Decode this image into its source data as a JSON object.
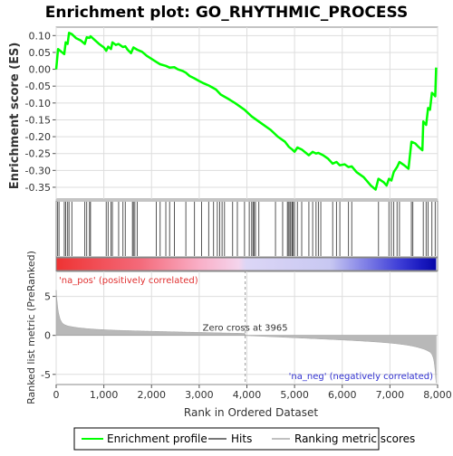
{
  "chart_data": {
    "type": "line",
    "title": "Enrichment plot: GO_RHYTHMIC_PROCESS",
    "panels": {
      "enrichment": {
        "ylabel": "Enrichment score (ES)",
        "ylim": [
          -0.385,
          0.125
        ],
        "yticks": [
          0.1,
          0.05,
          0.0,
          -0.05,
          -0.1,
          -0.15,
          -0.2,
          -0.25,
          -0.3,
          -0.35
        ],
        "ytick_labels": [
          "0.10",
          "0.05",
          "0.00",
          "-0.05",
          "-0.10",
          "-0.15",
          "-0.20",
          "-0.25",
          "-0.30",
          "-0.35"
        ],
        "series_color": "#00ff00",
        "profile": [
          [
            0,
            0.0
          ],
          [
            40,
            0.06
          ],
          [
            170,
            0.045
          ],
          [
            200,
            0.08
          ],
          [
            240,
            0.075
          ],
          [
            270,
            0.108
          ],
          [
            330,
            0.104
          ],
          [
            420,
            0.092
          ],
          [
            520,
            0.085
          ],
          [
            600,
            0.075
          ],
          [
            640,
            0.095
          ],
          [
            700,
            0.093
          ],
          [
            720,
            0.098
          ],
          [
            900,
            0.075
          ],
          [
            1000,
            0.065
          ],
          [
            1050,
            0.055
          ],
          [
            1090,
            0.067
          ],
          [
            1150,
            0.06
          ],
          [
            1180,
            0.08
          ],
          [
            1250,
            0.072
          ],
          [
            1310,
            0.075
          ],
          [
            1400,
            0.066
          ],
          [
            1450,
            0.068
          ],
          [
            1500,
            0.058
          ],
          [
            1570,
            0.048
          ],
          [
            1620,
            0.065
          ],
          [
            1700,
            0.058
          ],
          [
            1800,
            0.052
          ],
          [
            1900,
            0.04
          ],
          [
            2100,
            0.022
          ],
          [
            2180,
            0.015
          ],
          [
            2300,
            0.01
          ],
          [
            2380,
            0.005
          ],
          [
            2480,
            0.006
          ],
          [
            2550,
            0.0
          ],
          [
            2650,
            -0.005
          ],
          [
            2720,
            -0.01
          ],
          [
            2800,
            -0.02
          ],
          [
            2900,
            -0.027
          ],
          [
            3000,
            -0.035
          ],
          [
            3100,
            -0.042
          ],
          [
            3200,
            -0.048
          ],
          [
            3350,
            -0.06
          ],
          [
            3450,
            -0.075
          ],
          [
            3600,
            -0.087
          ],
          [
            3750,
            -0.1
          ],
          [
            3950,
            -0.12
          ],
          [
            4100,
            -0.14
          ],
          [
            4300,
            -0.16
          ],
          [
            4500,
            -0.18
          ],
          [
            4650,
            -0.2
          ],
          [
            4800,
            -0.215
          ],
          [
            4880,
            -0.23
          ],
          [
            4950,
            -0.238
          ],
          [
            5000,
            -0.245
          ],
          [
            5060,
            -0.232
          ],
          [
            5150,
            -0.238
          ],
          [
            5300,
            -0.255
          ],
          [
            5380,
            -0.245
          ],
          [
            5450,
            -0.25
          ],
          [
            5500,
            -0.248
          ],
          [
            5600,
            -0.255
          ],
          [
            5700,
            -0.265
          ],
          [
            5800,
            -0.28
          ],
          [
            5880,
            -0.275
          ],
          [
            5950,
            -0.285
          ],
          [
            6050,
            -0.282
          ],
          [
            6130,
            -0.29
          ],
          [
            6200,
            -0.288
          ],
          [
            6300,
            -0.305
          ],
          [
            6450,
            -0.32
          ],
          [
            6600,
            -0.345
          ],
          [
            6700,
            -0.357
          ],
          [
            6760,
            -0.325
          ],
          [
            6870,
            -0.335
          ],
          [
            6930,
            -0.345
          ],
          [
            6980,
            -0.325
          ],
          [
            7030,
            -0.33
          ],
          [
            7080,
            -0.305
          ],
          [
            7150,
            -0.29
          ],
          [
            7200,
            -0.275
          ],
          [
            7300,
            -0.285
          ],
          [
            7390,
            -0.295
          ],
          [
            7420,
            -0.255
          ],
          [
            7450,
            -0.215
          ],
          [
            7530,
            -0.22
          ],
          [
            7600,
            -0.23
          ],
          [
            7680,
            -0.24
          ],
          [
            7700,
            -0.155
          ],
          [
            7760,
            -0.165
          ],
          [
            7800,
            -0.115
          ],
          [
            7840,
            -0.12
          ],
          [
            7880,
            -0.07
          ],
          [
            7920,
            -0.075
          ],
          [
            7950,
            -0.08
          ],
          [
            7970,
            0.005
          ]
        ]
      },
      "hits": {
        "positions": [
          30,
          60,
          170,
          200,
          240,
          270,
          330,
          600,
          640,
          700,
          720,
          1050,
          1090,
          1150,
          1180,
          1310,
          1400,
          1450,
          1600,
          1620,
          1650,
          1700,
          2100,
          2180,
          2300,
          2380,
          2480,
          2720,
          2900,
          3050,
          3200,
          3300,
          3380,
          3430,
          3480,
          3530,
          3700,
          3800,
          3950,
          4050,
          4100,
          4130,
          4150,
          4180,
          4250,
          4600,
          4750,
          4850,
          4870,
          4900,
          4920,
          4950,
          4970,
          5000,
          5060,
          5150,
          5300,
          5380,
          5450,
          5500,
          5550,
          5800,
          5880,
          5950,
          6130,
          6200,
          6760,
          6980,
          7030,
          7080,
          7150,
          7200,
          7450,
          7480,
          7700,
          7760,
          7800,
          7880,
          7950
        ]
      },
      "heatbar": {
        "note_pos": "'na_pos' (positively correlated)",
        "note_neg": "'na_neg' (negatively correlated)"
      },
      "metric": {
        "ylabel": "Ranked list metric (PreRanked)",
        "yticks": [
          5,
          0,
          -5
        ],
        "ytick_labels": [
          "5",
          "0",
          "-5"
        ],
        "ylim": [
          -6.3,
          8.2
        ],
        "zero_cross": 3965,
        "zero_cross_label": "Zero cross at 3965"
      }
    },
    "xlabel": "Rank in Ordered Dataset",
    "xlim": [
      0,
      8000
    ],
    "xticks": [
      0,
      1000,
      2000,
      3000,
      4000,
      5000,
      6000,
      7000,
      8000
    ],
    "xtick_labels": [
      "0",
      "1,000",
      "2,000",
      "3,000",
      "4,000",
      "5,000",
      "6,000",
      "7,000",
      "8,000"
    ],
    "n_genes": 7970,
    "legend": {
      "placement": "bottom",
      "items": [
        {
          "label": "Enrichment profile",
          "color": "#00ff00"
        },
        {
          "label": "Hits",
          "color": "#777777"
        },
        {
          "label": "Ranking metric scores",
          "color": "#c0c0c0"
        }
      ]
    }
  }
}
